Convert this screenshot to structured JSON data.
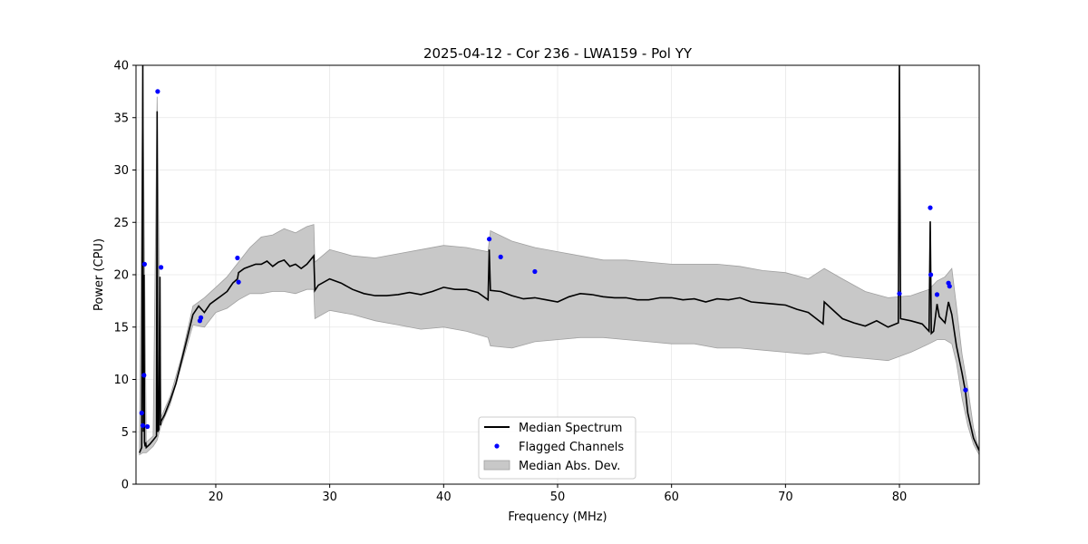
{
  "chart_data": {
    "type": "line",
    "title": "2025-04-12 - Cor 236 - LWA159 - Pol YY",
    "xlabel": "Frequency (MHz)",
    "ylabel": "Power (CPU)",
    "xlim": [
      13,
      87
    ],
    "ylim": [
      0,
      40
    ],
    "xticks": [
      20,
      30,
      40,
      50,
      60,
      70,
      80
    ],
    "yticks": [
      0,
      5,
      10,
      15,
      20,
      25,
      30,
      35,
      40
    ],
    "grid": true,
    "legend_position": "lower-center",
    "legend": [
      {
        "label": "Median Spectrum",
        "kind": "line",
        "color": "#000000"
      },
      {
        "label": "Flagged Channels",
        "kind": "marker",
        "color": "#0000ff"
      },
      {
        "label": "Median Abs. Dev.",
        "kind": "band",
        "color": "#c8c8c8"
      }
    ],
    "series": [
      {
        "name": "Median Spectrum",
        "color": "#000000",
        "x": [
          13.3,
          13.5,
          13.6,
          13.65,
          13.7,
          13.75,
          13.8,
          13.85,
          13.9,
          14.0,
          14.2,
          14.5,
          14.8,
          14.85,
          14.9,
          15.0,
          15.1,
          15.15,
          15.2,
          15.5,
          16.0,
          16.5,
          17.0,
          17.5,
          18.0,
          18.5,
          19.0,
          19.5,
          20.0,
          20.5,
          21.0,
          21.5,
          21.9,
          22.0,
          22.5,
          23.0,
          23.5,
          24.0,
          24.5,
          25.0,
          25.5,
          26.0,
          26.5,
          27.0,
          27.5,
          28.0,
          28.6,
          28.7,
          29.0,
          30.0,
          31.0,
          32.0,
          33.0,
          34.0,
          35.0,
          36.0,
          37.0,
          38.0,
          39.0,
          40.0,
          41.0,
          42.0,
          43.0,
          43.9,
          44.0,
          44.1,
          45.0,
          46.0,
          47.0,
          48.0,
          49.0,
          50.0,
          51.0,
          52.0,
          53.0,
          54.0,
          55.0,
          56.0,
          57.0,
          58.0,
          59.0,
          60.0,
          61.0,
          62.0,
          63.0,
          64.0,
          65.0,
          66.0,
          67.0,
          68.0,
          69.0,
          70.0,
          71.0,
          72.0,
          73.3,
          73.4,
          74.0,
          75.0,
          76.0,
          77.0,
          78.0,
          79.0,
          79.9,
          80.0,
          80.1,
          81.0,
          82.0,
          82.6,
          82.7,
          82.8,
          83.0,
          83.3,
          83.5,
          84.0,
          84.3,
          84.6,
          85.0,
          85.5,
          85.8,
          86.0,
          86.5,
          87.0
        ],
        "y": [
          3.0,
          3.5,
          40.0,
          5.0,
          20.0,
          4.0,
          3.6,
          4.0,
          3.5,
          3.6,
          3.8,
          4.2,
          4.6,
          35.6,
          5.0,
          5.2,
          19.8,
          5.6,
          6.0,
          6.6,
          8.0,
          9.6,
          11.8,
          14.0,
          16.2,
          17.0,
          16.4,
          17.2,
          17.6,
          18.0,
          18.4,
          19.2,
          19.6,
          20.2,
          20.6,
          20.8,
          21.0,
          21.0,
          21.3,
          20.8,
          21.2,
          21.4,
          20.8,
          21.0,
          20.6,
          21.0,
          21.8,
          18.5,
          19.0,
          19.6,
          19.2,
          18.6,
          18.2,
          18.0,
          18.0,
          18.1,
          18.3,
          18.1,
          18.4,
          18.8,
          18.6,
          18.6,
          18.3,
          17.6,
          22.4,
          18.5,
          18.4,
          18.0,
          17.7,
          17.8,
          17.6,
          17.4,
          17.9,
          18.2,
          18.1,
          17.9,
          17.8,
          17.8,
          17.6,
          17.6,
          17.8,
          17.8,
          17.6,
          17.7,
          17.4,
          17.7,
          17.6,
          17.8,
          17.4,
          17.3,
          17.2,
          17.1,
          16.7,
          16.4,
          15.3,
          17.4,
          16.8,
          15.8,
          15.4,
          15.1,
          15.6,
          15.0,
          15.4,
          40.0,
          15.8,
          15.6,
          15.3,
          14.6,
          25.1,
          14.4,
          14.6,
          17.2,
          16.0,
          15.4,
          17.4,
          16.2,
          13.2,
          10.6,
          8.8,
          6.8,
          4.4,
          3.2
        ]
      }
    ],
    "band": {
      "name": "Median Abs. Dev.",
      "color": "#c8c8c8",
      "x": [
        13.3,
        13.6,
        13.9,
        14.5,
        14.85,
        15.2,
        16.0,
        17.0,
        18.0,
        19.0,
        20.0,
        21.0,
        22.0,
        23.0,
        24.0,
        25.0,
        26.0,
        27.0,
        28.0,
        28.6,
        28.7,
        30.0,
        32.0,
        34.0,
        36.0,
        38.0,
        40.0,
        42.0,
        43.9,
        44.1,
        46.0,
        48.0,
        50.0,
        52.0,
        54.0,
        56.0,
        58.0,
        60.0,
        62.0,
        64.0,
        66.0,
        68.0,
        70.0,
        72.0,
        73.4,
        75.0,
        77.0,
        79.0,
        81.0,
        82.6,
        83.3,
        84.0,
        84.6,
        85.0,
        85.5,
        86.0,
        86.5,
        87.0
      ],
      "upper": [
        3.2,
        40.0,
        4.0,
        4.6,
        37.0,
        6.4,
        8.4,
        12.2,
        17.0,
        17.8,
        18.8,
        19.8,
        21.2,
        22.6,
        23.6,
        23.8,
        24.4,
        24.0,
        24.6,
        24.8,
        21.2,
        22.4,
        21.8,
        21.6,
        22.0,
        22.4,
        22.8,
        22.6,
        22.2,
        24.2,
        23.2,
        22.6,
        22.2,
        21.8,
        21.4,
        21.4,
        21.2,
        21.0,
        21.0,
        21.0,
        20.8,
        20.4,
        20.2,
        19.6,
        20.6,
        19.6,
        18.4,
        17.8,
        18.0,
        18.6,
        19.4,
        19.8,
        20.6,
        17.0,
        12.4,
        9.2,
        5.4,
        3.2
      ],
      "lower": [
        2.8,
        3.0,
        3.0,
        3.6,
        4.2,
        5.6,
        7.6,
        11.4,
        15.2,
        15.0,
        16.4,
        16.8,
        17.6,
        18.2,
        18.2,
        18.4,
        18.4,
        18.2,
        18.6,
        18.6,
        15.8,
        16.6,
        16.2,
        15.6,
        15.2,
        14.8,
        15.0,
        14.6,
        14.0,
        13.2,
        13.0,
        13.6,
        13.8,
        14.0,
        14.0,
        13.8,
        13.6,
        13.4,
        13.4,
        13.0,
        13.0,
        12.8,
        12.6,
        12.4,
        12.6,
        12.2,
        12.0,
        11.8,
        12.6,
        13.4,
        13.8,
        13.8,
        13.4,
        11.6,
        8.2,
        5.6,
        3.8,
        2.8
      ]
    },
    "flagged_channels": {
      "name": "Flagged Channels",
      "color": "#0000ff",
      "x": [
        13.5,
        13.6,
        13.7,
        13.75,
        14.0,
        14.9,
        15.2,
        18.6,
        18.7,
        21.9,
        22.0,
        44.0,
        45.0,
        48.0,
        80.0,
        82.7,
        82.75,
        83.3,
        84.3,
        84.4,
        85.8
      ],
      "y": [
        6.8,
        5.6,
        10.4,
        21.0,
        5.5,
        37.5,
        20.7,
        15.6,
        15.9,
        21.6,
        19.3,
        23.4,
        21.7,
        20.3,
        18.2,
        26.4,
        20.0,
        18.1,
        19.2,
        18.9,
        9.0
      ]
    }
  }
}
